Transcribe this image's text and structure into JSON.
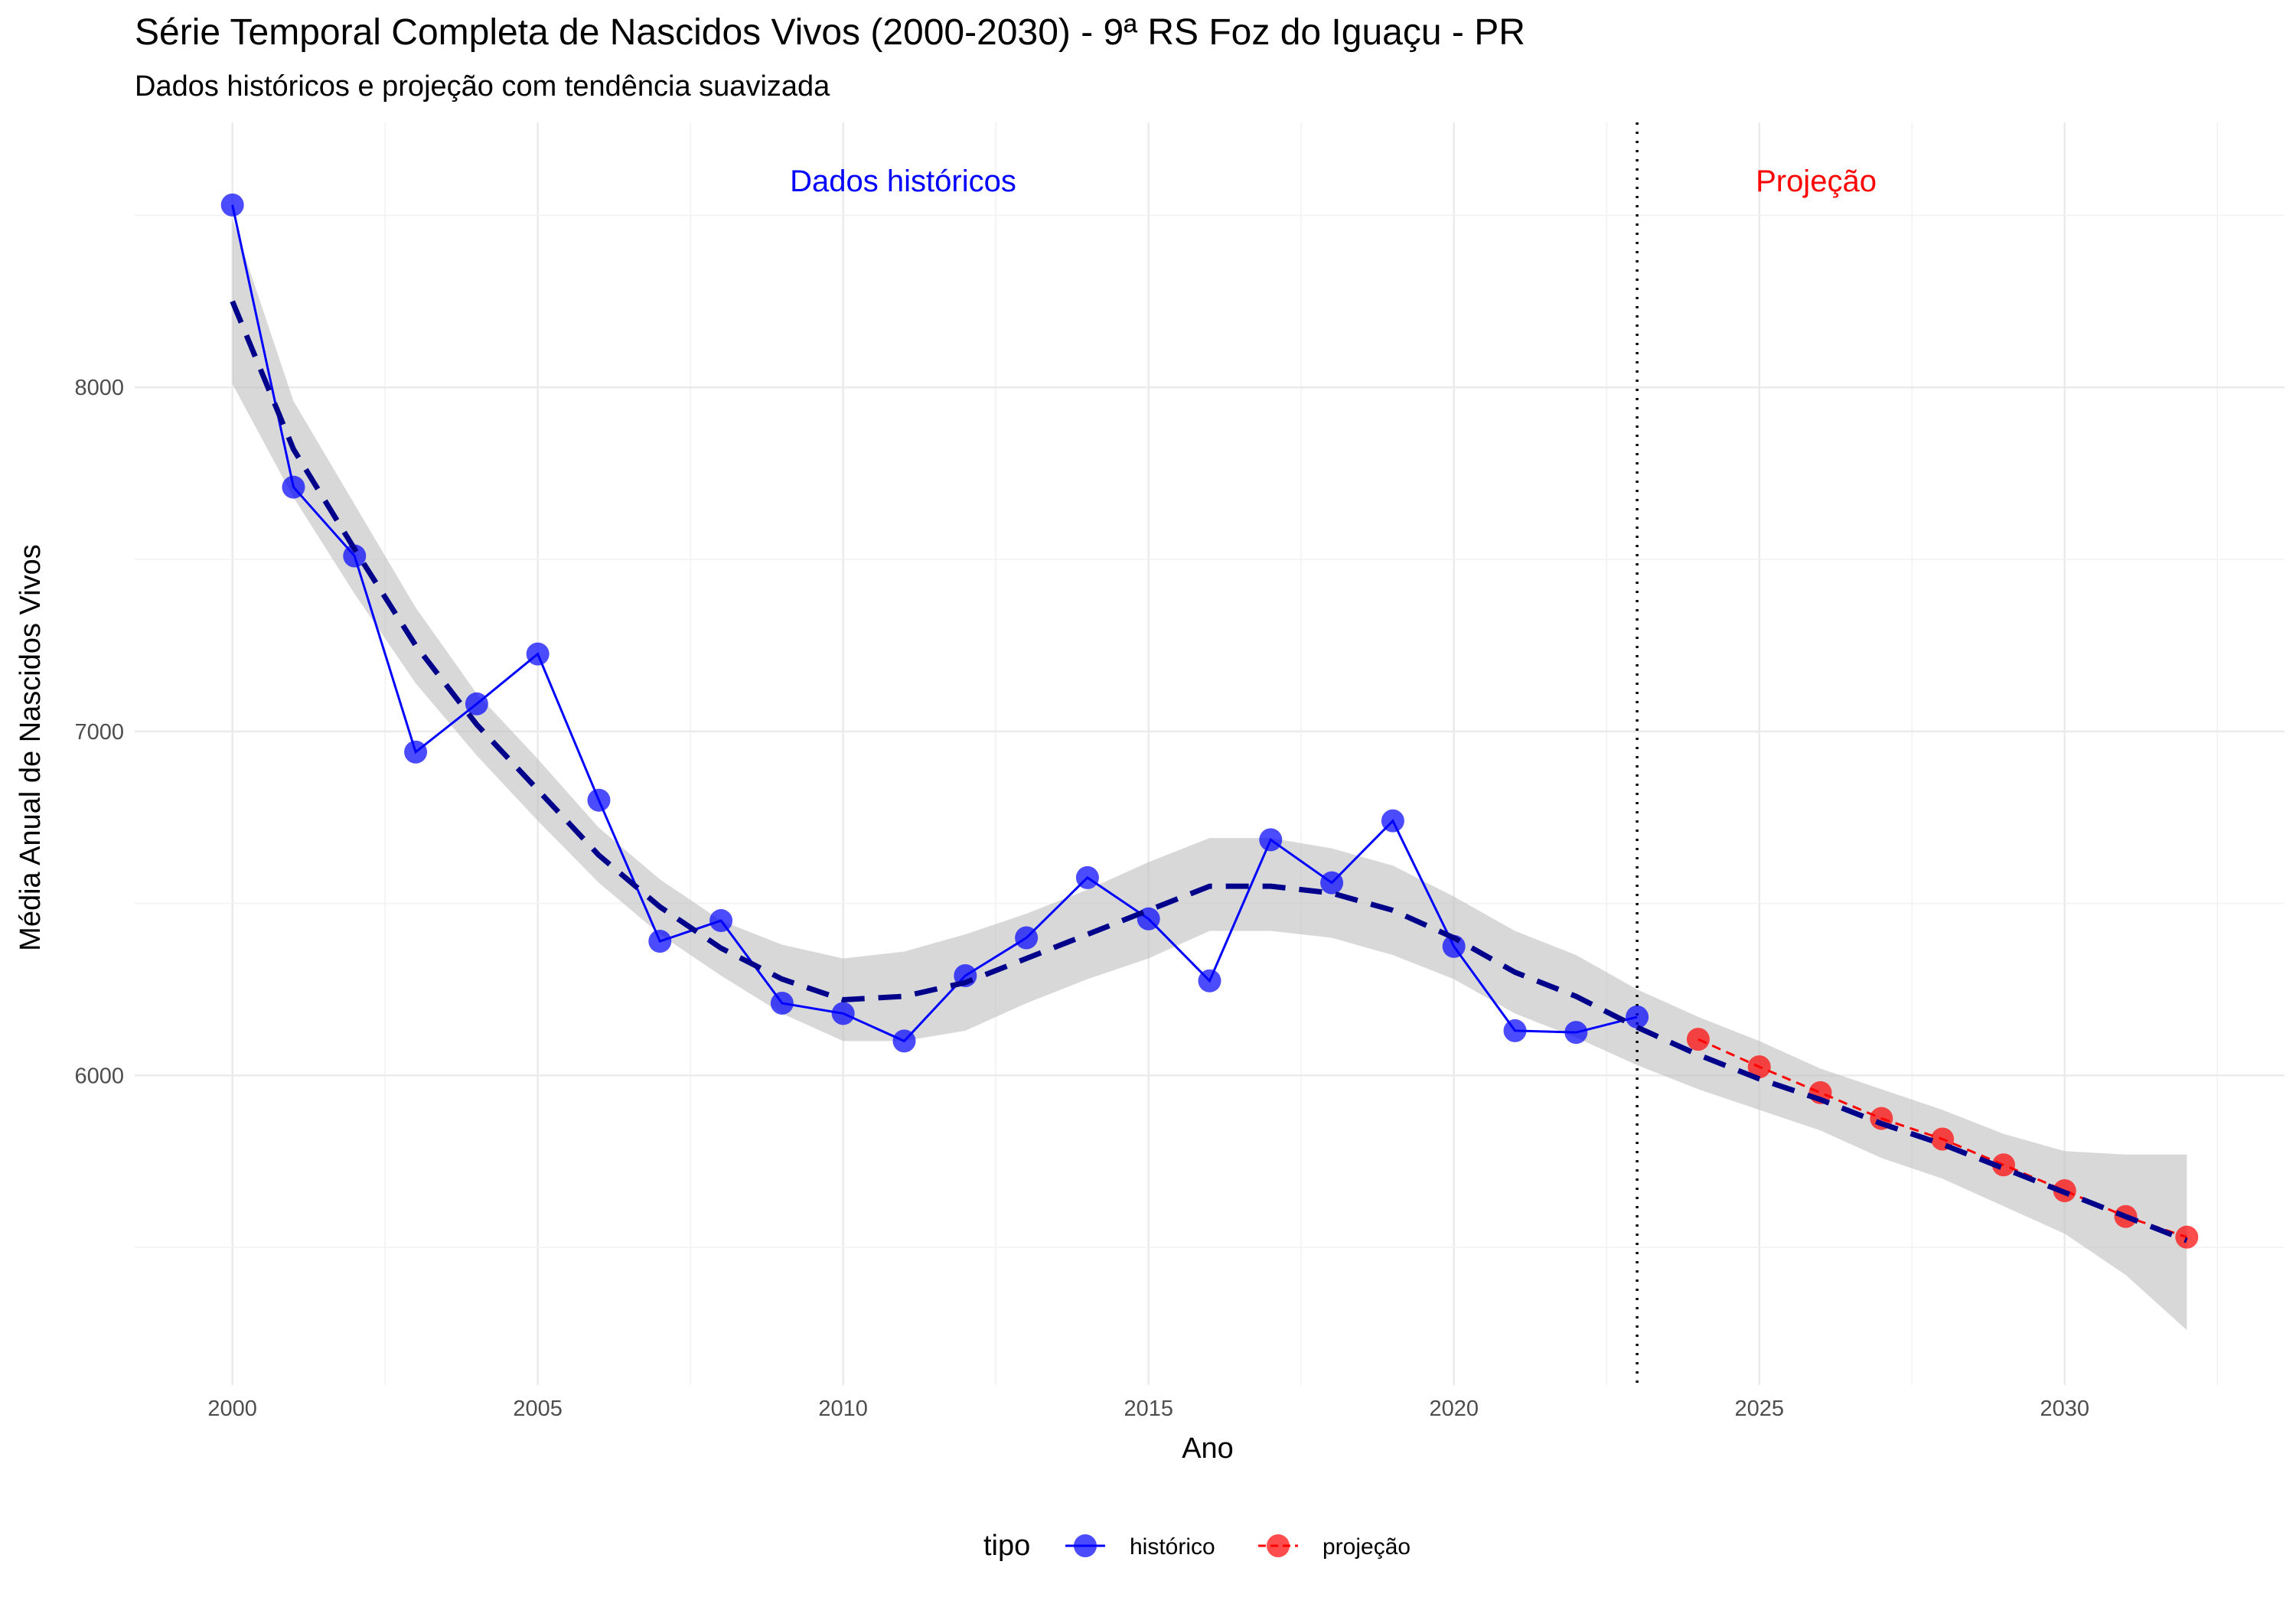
{
  "chart_data": {
    "type": "line",
    "title": "Série Temporal Completa de Nascidos Vivos (2000-2030) -  9ª RS Foz do Iguaçu - PR",
    "subtitle": "Dados históricos e projeção com tendência suavizada",
    "xlabel": "Ano",
    "ylabel": "Média Anual de Nascidos Vivos",
    "xlim": [
      1998.4,
      2033.6
    ],
    "ylim": [
      5100,
      8770
    ],
    "x_ticks": [
      2000,
      2005,
      2010,
      2015,
      2020,
      2025,
      2030
    ],
    "y_ticks": [
      6000,
      7000,
      8000
    ],
    "grid": true,
    "annotations": {
      "historical_label": "Dados históricos",
      "projection_label": "Projeção",
      "divider_x": 2023
    },
    "legend": {
      "title": "tipo",
      "position": "bottom",
      "items": [
        "histórico",
        "projeção"
      ]
    },
    "colors": {
      "historical": "#0000ff",
      "projection": "#ff0000",
      "trend": "#00008b",
      "band": "#bebebe"
    },
    "series": [
      {
        "name": "histórico",
        "x": [
          2000,
          2001,
          2002,
          2003,
          2004,
          2005,
          2006,
          2007,
          2008,
          2009,
          2010,
          2011,
          2012,
          2013,
          2014,
          2015,
          2016,
          2017,
          2018,
          2019,
          2020,
          2021,
          2022,
          2023
        ],
        "values": [
          8530,
          7710,
          7510,
          6940,
          7080,
          7225,
          6800,
          6390,
          6450,
          6210,
          6180,
          6100,
          6290,
          6400,
          6575,
          6455,
          6275,
          6685,
          6560,
          6740,
          6375,
          6130,
          6125,
          6170
        ]
      },
      {
        "name": "projeção",
        "x": [
          2024,
          2025,
          2026,
          2027,
          2028,
          2029,
          2030,
          2031,
          2032
        ],
        "values": [
          6105,
          6025,
          5950,
          5875,
          5815,
          5740,
          5665,
          5590,
          5530
        ]
      }
    ],
    "trend": {
      "x": [
        2000,
        2001,
        2002,
        2003,
        2004,
        2005,
        2006,
        2007,
        2008,
        2009,
        2010,
        2011,
        2012,
        2013,
        2014,
        2015,
        2016,
        2017,
        2018,
        2019,
        2020,
        2021,
        2022,
        2023,
        2024,
        2025,
        2026,
        2027,
        2028,
        2029,
        2030,
        2031,
        2032
      ],
      "values": [
        8250,
        7820,
        7530,
        7250,
        7020,
        6830,
        6640,
        6490,
        6370,
        6280,
        6220,
        6230,
        6270,
        6340,
        6410,
        6480,
        6550,
        6550,
        6530,
        6480,
        6400,
        6300,
        6230,
        6140,
        6060,
        5990,
        5930,
        5860,
        5800,
        5730,
        5660,
        5590,
        5520
      ],
      "lower": [
        8010,
        7680,
        7400,
        7140,
        6930,
        6740,
        6560,
        6410,
        6290,
        6180,
        6100,
        6100,
        6130,
        6210,
        6280,
        6340,
        6420,
        6420,
        6400,
        6350,
        6280,
        6180,
        6110,
        6030,
        5960,
        5900,
        5840,
        5760,
        5700,
        5620,
        5540,
        5420,
        5260
      ],
      "upper": [
        8490,
        7960,
        7660,
        7360,
        7110,
        6920,
        6720,
        6570,
        6450,
        6380,
        6340,
        6360,
        6410,
        6470,
        6540,
        6620,
        6690,
        6690,
        6660,
        6610,
        6520,
        6420,
        6350,
        6250,
        6170,
        6100,
        6020,
        5960,
        5900,
        5830,
        5780,
        5770,
        5770
      ]
    }
  }
}
